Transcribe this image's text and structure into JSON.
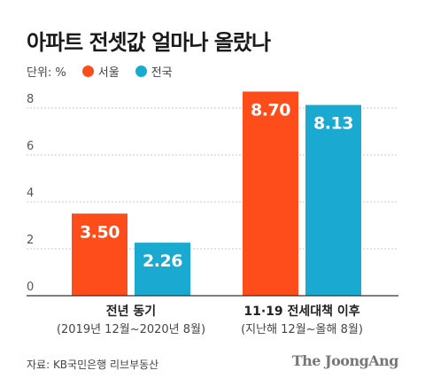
{
  "title": "아파트 전셋값 얼마나 올랐나",
  "unit_label": "단위: %",
  "colors": {
    "seoul": "#fe4d1a",
    "national": "#1aaad1"
  },
  "chart_data": {
    "type": "bar",
    "title": "아파트 전셋값 얼마나 올랐나",
    "ylabel": "",
    "xlabel": "",
    "ylim": [
      0,
      9
    ],
    "yticks": [
      "0",
      "2",
      "4",
      "6",
      "8"
    ],
    "grid": true,
    "legend": "top-left",
    "categories": [
      {
        "label": "전년 동기",
        "sublabel": "(2019년 12월~2020년 8월)"
      },
      {
        "label": "11·19 전세대책 이후",
        "sublabel": "(지난해 12월~올해 8월)"
      }
    ],
    "series": [
      {
        "name": "서울",
        "color": "#fe4d1a",
        "values": [
          3.5,
          8.7
        ],
        "labels": [
          "3.50",
          "8.70"
        ]
      },
      {
        "name": "전국",
        "color": "#1aaad1",
        "values": [
          2.26,
          8.13
        ],
        "labels": [
          "2.26",
          "8.13"
        ]
      }
    ]
  },
  "source": "자료: KB국민은행 리브부동산",
  "brand": "The JoongAng"
}
